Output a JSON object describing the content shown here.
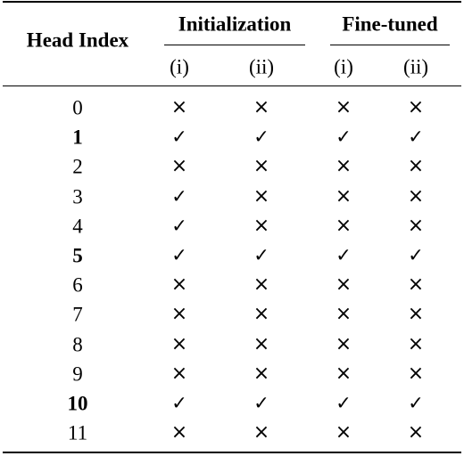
{
  "table": {
    "head_index_label": "Head Index",
    "groups": [
      {
        "label": "Initialization",
        "subcolumns": [
          "(i)",
          "(ii)"
        ]
      },
      {
        "label": "Fine-tuned",
        "subcolumns": [
          "(i)",
          "(ii)"
        ]
      }
    ],
    "check_symbol": "✓",
    "cross_symbol": "×",
    "rows": [
      {
        "index": "0",
        "bold": false,
        "values": [
          "×",
          "×",
          "×",
          "×"
        ]
      },
      {
        "index": "1",
        "bold": true,
        "values": [
          "✓",
          "✓",
          "✓",
          "✓"
        ]
      },
      {
        "index": "2",
        "bold": false,
        "values": [
          "×",
          "×",
          "×",
          "×"
        ]
      },
      {
        "index": "3",
        "bold": false,
        "values": [
          "✓",
          "×",
          "×",
          "×"
        ]
      },
      {
        "index": "4",
        "bold": false,
        "values": [
          "✓",
          "×",
          "×",
          "×"
        ]
      },
      {
        "index": "5",
        "bold": true,
        "values": [
          "✓",
          "✓",
          "✓",
          "✓"
        ]
      },
      {
        "index": "6",
        "bold": false,
        "values": [
          "×",
          "×",
          "×",
          "×"
        ]
      },
      {
        "index": "7",
        "bold": false,
        "values": [
          "×",
          "×",
          "×",
          "×"
        ]
      },
      {
        "index": "8",
        "bold": false,
        "values": [
          "×",
          "×",
          "×",
          "×"
        ]
      },
      {
        "index": "9",
        "bold": false,
        "values": [
          "×",
          "×",
          "×",
          "×"
        ]
      },
      {
        "index": "10",
        "bold": true,
        "values": [
          "✓",
          "✓",
          "✓",
          "✓"
        ]
      },
      {
        "index": "11",
        "bold": false,
        "values": [
          "×",
          "×",
          "×",
          "×"
        ]
      }
    ]
  }
}
